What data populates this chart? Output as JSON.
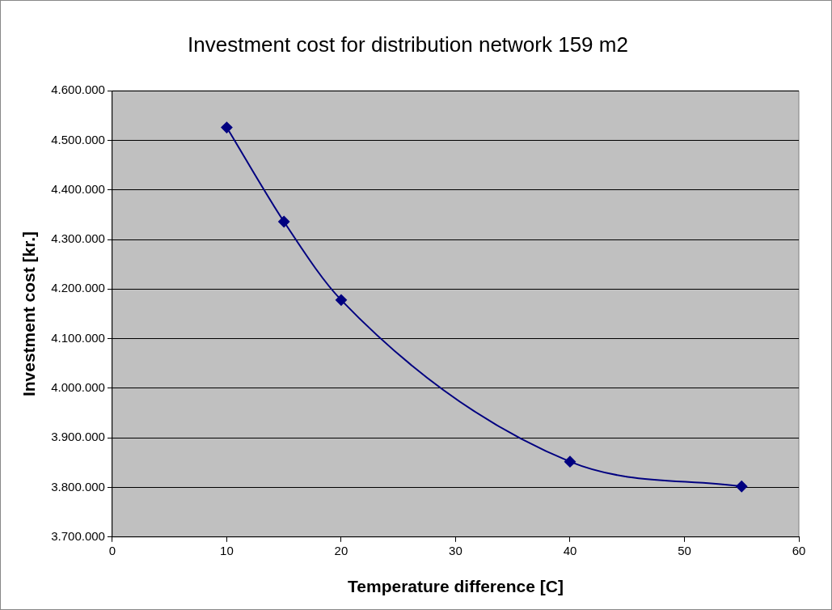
{
  "chart_data": {
    "type": "line",
    "title": "Investment cost for distribution network 159 m2",
    "xlabel": "Temperature difference [C]",
    "ylabel": "Investment cost [kr.]",
    "x": [
      10,
      15,
      20,
      40,
      55
    ],
    "series": [
      {
        "color": "#000080",
        "values": [
          4526000,
          4336000,
          4178000,
          3852000,
          3802000
        ]
      }
    ],
    "xlim": [
      0,
      60
    ],
    "xticks": [
      0,
      10,
      20,
      30,
      40,
      50,
      60
    ],
    "ylim": [
      3700000,
      4600000
    ],
    "yticks": [
      {
        "value": 3700000,
        "label": "3.700.000"
      },
      {
        "value": 3800000,
        "label": "3.800.000"
      },
      {
        "value": 3900000,
        "label": "3.900.000"
      },
      {
        "value": 4000000,
        "label": "4.000.000"
      },
      {
        "value": 4100000,
        "label": "4.100.000"
      },
      {
        "value": 4200000,
        "label": "4.200.000"
      },
      {
        "value": 4300000,
        "label": "4.300.000"
      },
      {
        "value": 4400000,
        "label": "4.400.000"
      },
      {
        "value": 4500000,
        "label": "4.500.000"
      },
      {
        "value": 4600000,
        "label": "4.600.000"
      }
    ],
    "grid": "y",
    "legend": false,
    "marker": "diamond",
    "line_style": "solid"
  }
}
